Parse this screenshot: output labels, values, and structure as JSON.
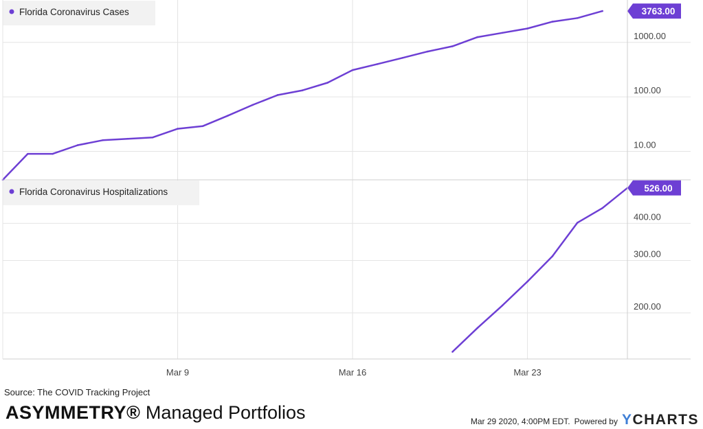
{
  "chart_data": [
    {
      "type": "line",
      "panel": "top",
      "y_scale": "log",
      "ylim": [
        3,
        6000
      ],
      "y_ticks": [
        {
          "value": 10,
          "label": "10.00"
        },
        {
          "value": 100,
          "label": "100.00"
        },
        {
          "value": 1000,
          "label": "1000.00"
        }
      ],
      "series": [
        {
          "name": "Florida Coronavirus Cases",
          "color": "#6d3fd4",
          "last_value_label": "3763.00",
          "points": [
            [
              "2020-03-02",
              2
            ],
            [
              "2020-03-03",
              9
            ],
            [
              "2020-03-04",
              9
            ],
            [
              "2020-03-05",
              13
            ],
            [
              "2020-03-06",
              16
            ],
            [
              "2020-03-07",
              17
            ],
            [
              "2020-03-08",
              18
            ],
            [
              "2020-03-09",
              26
            ],
            [
              "2020-03-10",
              29
            ],
            [
              "2020-03-11",
              45
            ],
            [
              "2020-03-12",
              71
            ],
            [
              "2020-03-13",
              108
            ],
            [
              "2020-03-14",
              132
            ],
            [
              "2020-03-15",
              182
            ],
            [
              "2020-03-16",
              310
            ],
            [
              "2020-03-17",
              400
            ],
            [
              "2020-03-18",
              520
            ],
            [
              "2020-03-19",
              680
            ],
            [
              "2020-03-20",
              850
            ],
            [
              "2020-03-21",
              1250
            ],
            [
              "2020-03-22",
              1500
            ],
            [
              "2020-03-23",
              1800
            ],
            [
              "2020-03-24",
              2400
            ],
            [
              "2020-03-25",
              2800
            ],
            [
              "2020-03-26",
              3763
            ]
          ]
        }
      ]
    },
    {
      "type": "line",
      "panel": "bottom",
      "y_scale": "log",
      "ylim": [
        140,
        560
      ],
      "y_ticks": [
        {
          "value": 200,
          "label": "200.00"
        },
        {
          "value": 300,
          "label": "300.00"
        },
        {
          "value": 400,
          "label": "400.00"
        }
      ],
      "series": [
        {
          "name": "Florida Coronavirus Hospitalizations",
          "color": "#6d3fd4",
          "last_value_label": "526.00",
          "points": [
            [
              "2020-03-20",
              148
            ],
            [
              "2020-03-21",
              178
            ],
            [
              "2020-03-22",
              212
            ],
            [
              "2020-03-23",
              255
            ],
            [
              "2020-03-24",
              310
            ],
            [
              "2020-03-25",
              402
            ],
            [
              "2020-03-26",
              450
            ],
            [
              "2020-03-27",
              526
            ]
          ]
        }
      ]
    }
  ],
  "x_axis": {
    "ticks": [
      {
        "date": "2020-03-09",
        "label": "Mar 9"
      },
      {
        "date": "2020-03-16",
        "label": "Mar 16"
      },
      {
        "date": "2020-03-23",
        "label": "Mar 23"
      }
    ]
  },
  "footer": {
    "source": "Source: The COVID Tracking Project",
    "brand_bold": "ASYMMETRY",
    "brand_reg": "®",
    "brand_rest": " Managed Portfolios",
    "timestamp": "Mar 29 2020, 4:00PM EDT.",
    "powered_by": "Powered by",
    "ycharts_y": "Y",
    "ycharts_rest": "CHARTS"
  }
}
